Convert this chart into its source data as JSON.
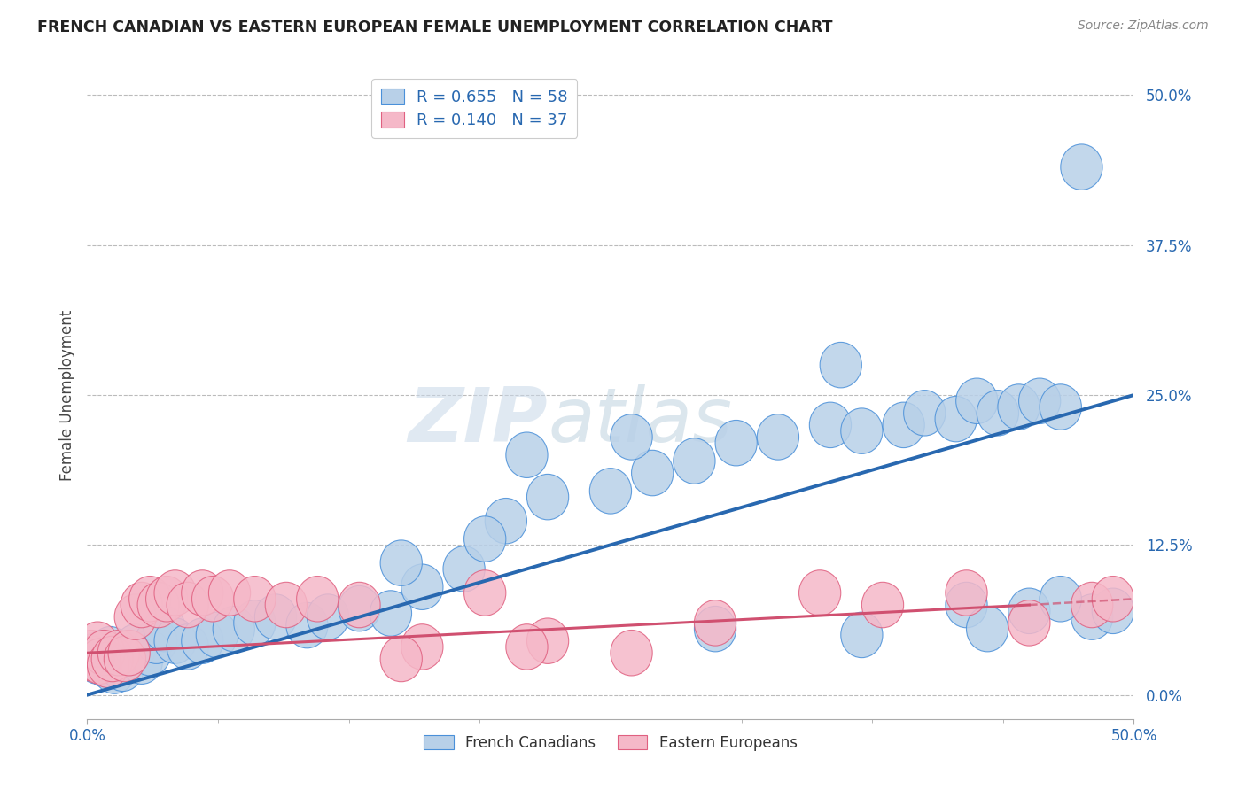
{
  "title": "FRENCH CANADIAN VS EASTERN EUROPEAN FEMALE UNEMPLOYMENT CORRELATION CHART",
  "source": "Source: ZipAtlas.com",
  "ylabel": "Female Unemployment",
  "ytick_vals": [
    0.0,
    12.5,
    25.0,
    37.5,
    50.0
  ],
  "xlim": [
    0,
    50
  ],
  "ylim": [
    -2,
    52
  ],
  "blue_R": "0.655",
  "blue_N": "58",
  "pink_R": "0.140",
  "pink_N": "37",
  "blue_fill": "#b8d0e8",
  "blue_edge": "#4a90d9",
  "pink_fill": "#f5b8c8",
  "pink_edge": "#e06080",
  "blue_line": "#2868b0",
  "pink_line": "#d05070",
  "blue_scatter": [
    [
      0.3,
      3.2
    ],
    [
      0.5,
      2.8
    ],
    [
      0.7,
      3.5
    ],
    [
      0.9,
      2.5
    ],
    [
      1.1,
      3.8
    ],
    [
      1.3,
      2.0
    ],
    [
      1.5,
      3.0
    ],
    [
      1.7,
      2.2
    ],
    [
      2.0,
      3.5
    ],
    [
      2.3,
      4.0
    ],
    [
      2.6,
      2.8
    ],
    [
      3.0,
      3.5
    ],
    [
      3.3,
      4.5
    ],
    [
      3.7,
      5.5
    ],
    [
      4.2,
      4.5
    ],
    [
      4.8,
      4.0
    ],
    [
      5.5,
      4.5
    ],
    [
      6.2,
      5.0
    ],
    [
      7.0,
      5.5
    ],
    [
      8.0,
      6.0
    ],
    [
      9.0,
      6.5
    ],
    [
      10.5,
      5.8
    ],
    [
      11.5,
      6.5
    ],
    [
      13.0,
      7.2
    ],
    [
      14.5,
      6.8
    ],
    [
      16.0,
      9.0
    ],
    [
      18.0,
      10.5
    ],
    [
      20.0,
      14.5
    ],
    [
      22.0,
      16.5
    ],
    [
      25.0,
      17.0
    ],
    [
      27.0,
      18.5
    ],
    [
      29.0,
      19.5
    ],
    [
      31.0,
      21.0
    ],
    [
      33.0,
      21.5
    ],
    [
      35.5,
      22.5
    ],
    [
      37.0,
      22.0
    ],
    [
      39.0,
      22.5
    ],
    [
      40.0,
      23.5
    ],
    [
      41.5,
      23.0
    ],
    [
      42.5,
      24.5
    ],
    [
      43.5,
      23.5
    ],
    [
      44.5,
      24.0
    ],
    [
      45.5,
      24.5
    ],
    [
      46.5,
      24.0
    ],
    [
      21.0,
      20.0
    ],
    [
      26.0,
      21.5
    ],
    [
      36.0,
      27.5
    ],
    [
      15.0,
      11.0
    ],
    [
      19.0,
      13.0
    ],
    [
      42.0,
      7.5
    ],
    [
      45.0,
      7.0
    ],
    [
      48.0,
      6.5
    ],
    [
      49.0,
      7.0
    ],
    [
      43.0,
      5.5
    ],
    [
      46.5,
      8.0
    ],
    [
      47.5,
      44.0
    ],
    [
      30.0,
      5.5
    ],
    [
      37.0,
      5.0
    ]
  ],
  "pink_scatter": [
    [
      0.2,
      3.5
    ],
    [
      0.3,
      3.0
    ],
    [
      0.5,
      4.2
    ],
    [
      0.6,
      2.8
    ],
    [
      0.8,
      3.5
    ],
    [
      1.0,
      2.5
    ],
    [
      1.2,
      3.0
    ],
    [
      1.5,
      3.5
    ],
    [
      1.8,
      3.0
    ],
    [
      2.0,
      3.5
    ],
    [
      2.3,
      6.5
    ],
    [
      2.6,
      7.5
    ],
    [
      3.0,
      8.0
    ],
    [
      3.4,
      7.5
    ],
    [
      3.8,
      8.0
    ],
    [
      4.2,
      8.5
    ],
    [
      4.8,
      7.5
    ],
    [
      5.5,
      8.5
    ],
    [
      6.0,
      8.0
    ],
    [
      6.8,
      8.5
    ],
    [
      8.0,
      8.0
    ],
    [
      9.5,
      7.5
    ],
    [
      11.0,
      8.0
    ],
    [
      13.0,
      7.5
    ],
    [
      16.0,
      4.0
    ],
    [
      19.0,
      8.5
    ],
    [
      22.0,
      4.5
    ],
    [
      26.0,
      3.5
    ],
    [
      30.0,
      6.0
    ],
    [
      35.0,
      8.5
    ],
    [
      38.0,
      7.5
    ],
    [
      42.0,
      8.5
    ],
    [
      45.0,
      6.0
    ],
    [
      48.0,
      7.5
    ],
    [
      49.0,
      8.0
    ],
    [
      15.0,
      3.0
    ],
    [
      21.0,
      4.0
    ]
  ],
  "legend_label_blue": "French Canadians",
  "legend_label_pink": "Eastern Europeans",
  "watermark_zip": "ZIP",
  "watermark_atlas": "atlas",
  "bg": "#ffffff",
  "grid_color": "#bbbbbb"
}
